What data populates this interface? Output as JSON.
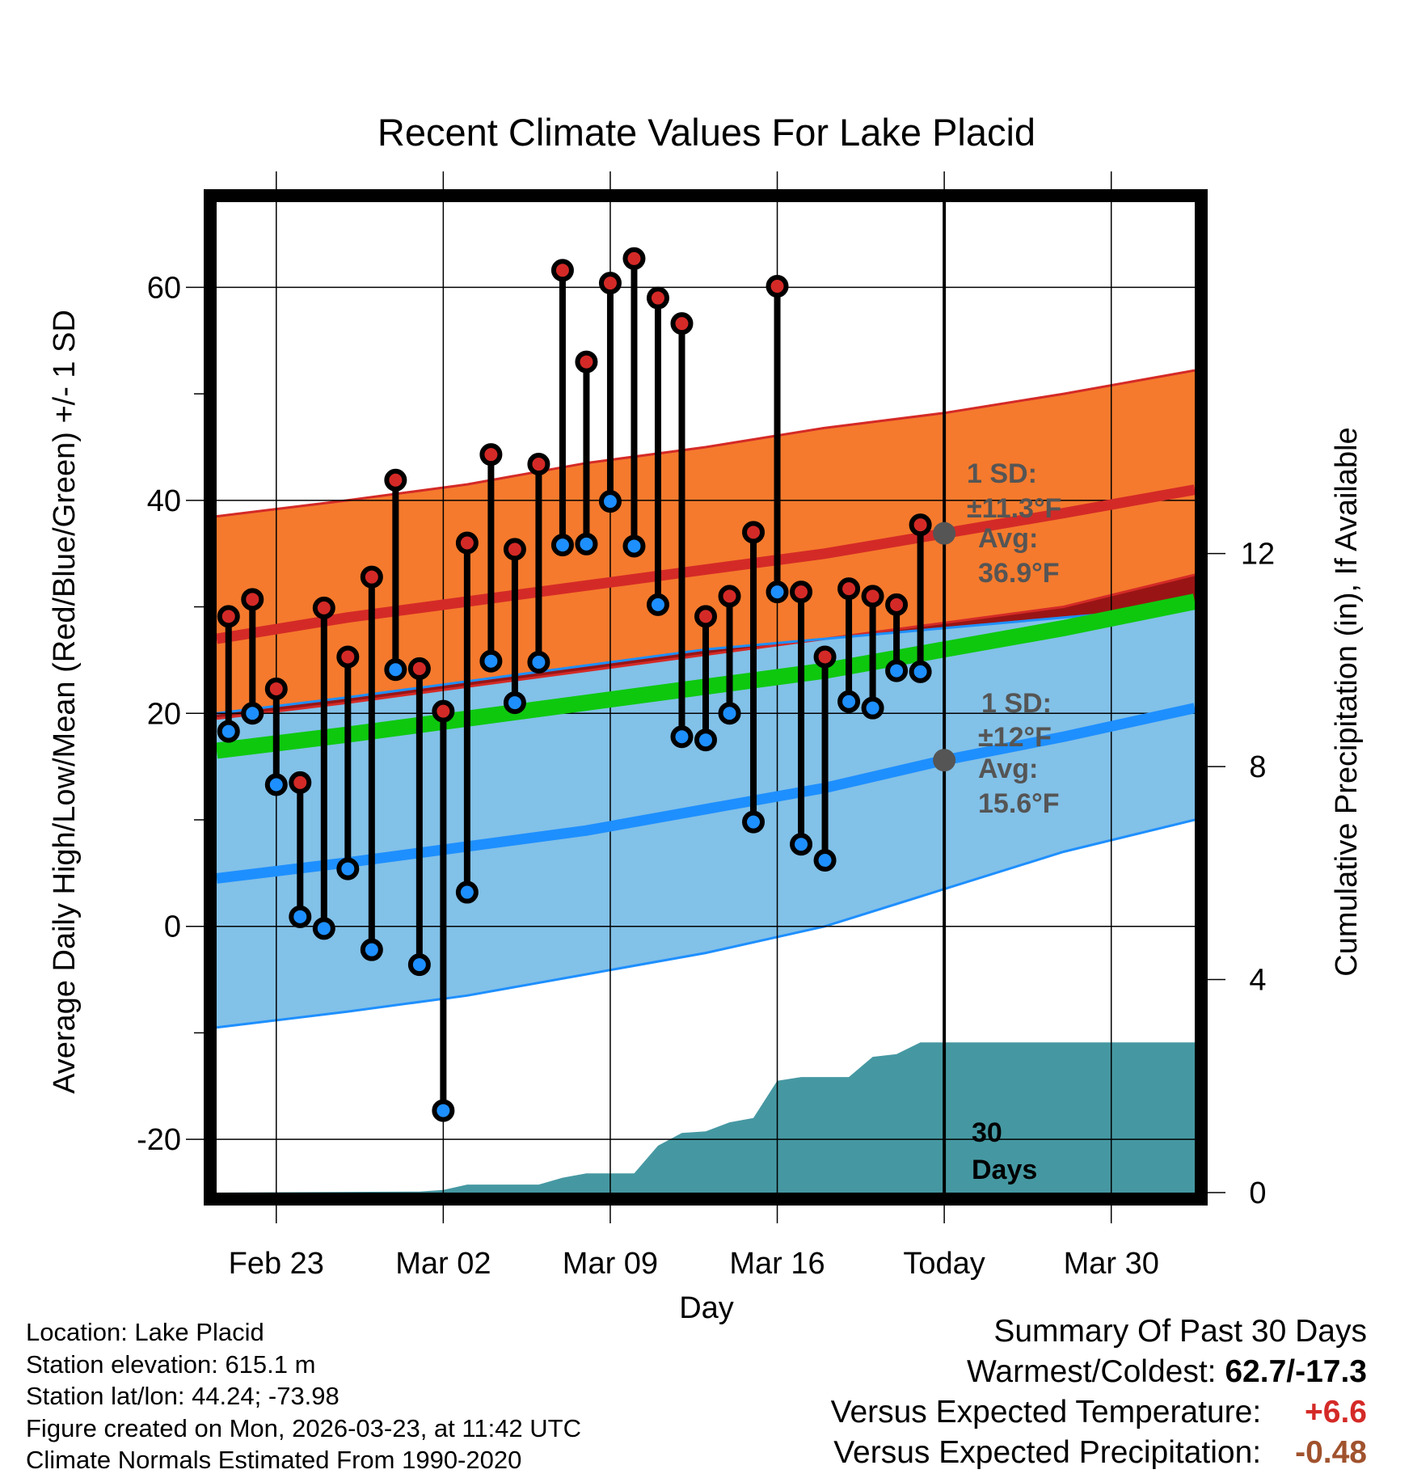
{
  "chart_data": {
    "type": "line",
    "title": "Recent Climate Values For Lake Placid",
    "xlabel": "Day",
    "ylabel": "Average Daily High/Low/Mean (Red/Blue/Green) +/- 1 SD",
    "y2label": "Cumulative Precipitation (in), If Available",
    "xlim": [
      -0.5,
      40.5
    ],
    "ylim": [
      -25,
      68
    ],
    "y2lim": [
      0,
      18.6
    ],
    "grid": true,
    "x_ticks": [
      {
        "day": 2,
        "label": "Feb 23"
      },
      {
        "day": 9,
        "label": "Mar 02"
      },
      {
        "day": 16,
        "label": "Mar 09"
      },
      {
        "day": 23,
        "label": "Mar 16"
      },
      {
        "day": 30,
        "label": "Today"
      },
      {
        "day": 37,
        "label": "Mar 30"
      }
    ],
    "y_ticks": [
      -20,
      0,
      20,
      40,
      60
    ],
    "y2_ticks": [
      0,
      4,
      8,
      12
    ],
    "today_day": 30,
    "normals": {
      "x": [
        -0.5,
        5,
        10,
        15,
        20,
        25,
        30,
        35,
        40.5
      ],
      "high_avg": [
        27,
        29,
        30.5,
        32,
        33.5,
        35,
        36.9,
        38.8,
        41
      ],
      "high_sd_upper": [
        38.5,
        40,
        41.5,
        43.5,
        45,
        46.8,
        48.2,
        50,
        52.2
      ],
      "high_sd_lower": [
        19.5,
        21,
        22.5,
        24,
        25.5,
        27,
        28.5,
        30,
        33
      ],
      "low_avg": [
        4.5,
        6,
        7.5,
        9,
        11,
        13,
        15.6,
        17.8,
        20.5
      ],
      "low_sd_upper": [
        20,
        21.5,
        23,
        24.5,
        26,
        27,
        28,
        29,
        30
      ],
      "low_sd_lower": [
        -9.5,
        -8,
        -6.5,
        -4.5,
        -2.5,
        0,
        3.5,
        7,
        10
      ],
      "mean_avg": [
        16.5,
        18,
        19.5,
        21,
        22.5,
        24,
        26,
        28,
        30.5
      ]
    },
    "observations": {
      "days": [
        0,
        1,
        2,
        3,
        4,
        5,
        6,
        7,
        8,
        9,
        10,
        11,
        12,
        13,
        14,
        15,
        16,
        17,
        18,
        19,
        20,
        21,
        22,
        23,
        24,
        25,
        26,
        27,
        28,
        29
      ],
      "high": [
        29.1,
        30.7,
        22.3,
        13.5,
        29.9,
        25.3,
        32.8,
        41.9,
        24.2,
        20.2,
        36.0,
        44.3,
        35.4,
        43.4,
        61.6,
        53.0,
        60.4,
        62.7,
        59.0,
        56.6,
        29.1,
        31.0,
        37.0,
        60.1,
        31.4,
        25.3,
        31.7,
        31.0,
        30.2,
        37.7
      ],
      "low": [
        18.3,
        20.0,
        13.3,
        0.9,
        -0.2,
        5.4,
        -2.2,
        24.1,
        -3.6,
        -17.3,
        3.2,
        24.9,
        21.0,
        24.8,
        35.8,
        35.9,
        39.9,
        35.7,
        30.2,
        17.8,
        17.5,
        20.0,
        9.8,
        31.4,
        7.7,
        6.2,
        21.1,
        20.5,
        24.0,
        23.9
      ]
    },
    "precip_cumulative": {
      "x": [
        -0.5,
        8,
        9,
        10,
        11,
        12,
        13,
        14,
        15,
        16,
        17,
        18,
        19,
        20,
        21,
        22,
        23,
        24,
        25,
        26,
        27,
        28,
        29,
        30,
        40.5
      ],
      "y": [
        0,
        0.02,
        0.05,
        0.15,
        0.15,
        0.15,
        0.15,
        0.28,
        0.36,
        0.36,
        0.36,
        0.88,
        1.12,
        1.15,
        1.32,
        1.4,
        2.1,
        2.17,
        2.17,
        2.17,
        2.55,
        2.6,
        2.82,
        2.82,
        2.82
      ]
    },
    "annotations": {
      "high_sd_line1": "1 SD:",
      "high_sd_line2": "±11.3°F",
      "high_avg_line1": "Avg:",
      "high_avg_line2": "36.9°F",
      "low_sd_line1": "1 SD:",
      "low_sd_line2": "±12°F",
      "low_avg_line1": "Avg:",
      "low_avg_line2": "15.6°F",
      "days_line1": "30",
      "days_line2": "Days"
    },
    "colors": {
      "high_band": "#f57a2d",
      "high_line": "#d42a27",
      "low_band": "#82c1e8",
      "low_line": "#1e8fff",
      "overlap_band": "#991515",
      "mean_line": "#0ec80e",
      "precip": "#4598a2",
      "dot_high": "#d42a27",
      "dot_low": "#1e8fff",
      "annotation": "#555555"
    }
  },
  "metadata": {
    "location": "Location: Lake Placid",
    "elevation": "Station elevation: 615.1 m",
    "latlon": "Station lat/lon: 44.24; -73.98",
    "created": "Figure created on Mon, 2026-03-23, at 11:42 UTC",
    "normals": "Climate Normals Estimated From 1990-2020"
  },
  "summary": {
    "title": "Summary Of Past 30 Days",
    "warm_cold_label": "Warmest/Coldest:",
    "warm_cold_value": "62.7/-17.3",
    "temp_label": "Versus Expected Temperature:",
    "temp_value": "+6.6",
    "precip_label": "Versus Expected Precipitation:",
    "precip_value": "-0.48",
    "temp_color": "#d42a27",
    "precip_color": "#a0522d"
  }
}
